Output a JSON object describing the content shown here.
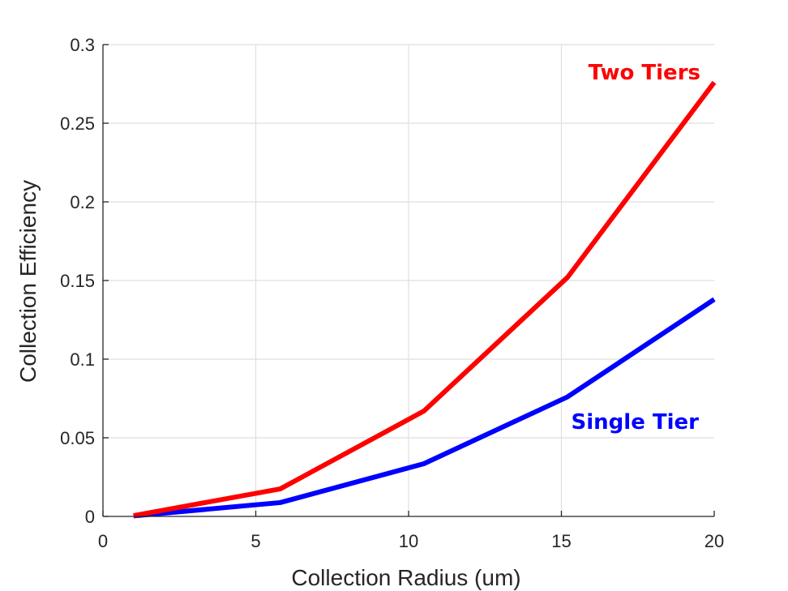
{
  "chart_data": {
    "type": "line",
    "xlabel": "Collection Radius (um)",
    "ylabel": "Collection Efficiency",
    "xlim": [
      0,
      20
    ],
    "ylim": [
      0,
      0.3
    ],
    "xticks": [
      0,
      5,
      10,
      15,
      20
    ],
    "yticks": [
      0,
      0.05,
      0.1,
      0.15,
      0.2,
      0.25,
      0.3
    ],
    "xtick_labels": [
      "0",
      "5",
      "10",
      "15",
      "20"
    ],
    "ytick_labels": [
      "0",
      "0.05",
      "0.1",
      "0.15",
      "0.2",
      "0.25",
      "0.3"
    ],
    "grid": true,
    "series": [
      {
        "name": "Two Tiers",
        "color": "#ff0000",
        "x": [
          1,
          5.8,
          10.5,
          15.2,
          20
        ],
        "y": [
          0.0005,
          0.0175,
          0.067,
          0.152,
          0.276
        ]
      },
      {
        "name": "Single Tier",
        "color": "#0000ff",
        "x": [
          1,
          5.8,
          10.5,
          15.2,
          20
        ],
        "y": [
          0.0003,
          0.0088,
          0.0335,
          0.076,
          0.138
        ]
      }
    ]
  }
}
